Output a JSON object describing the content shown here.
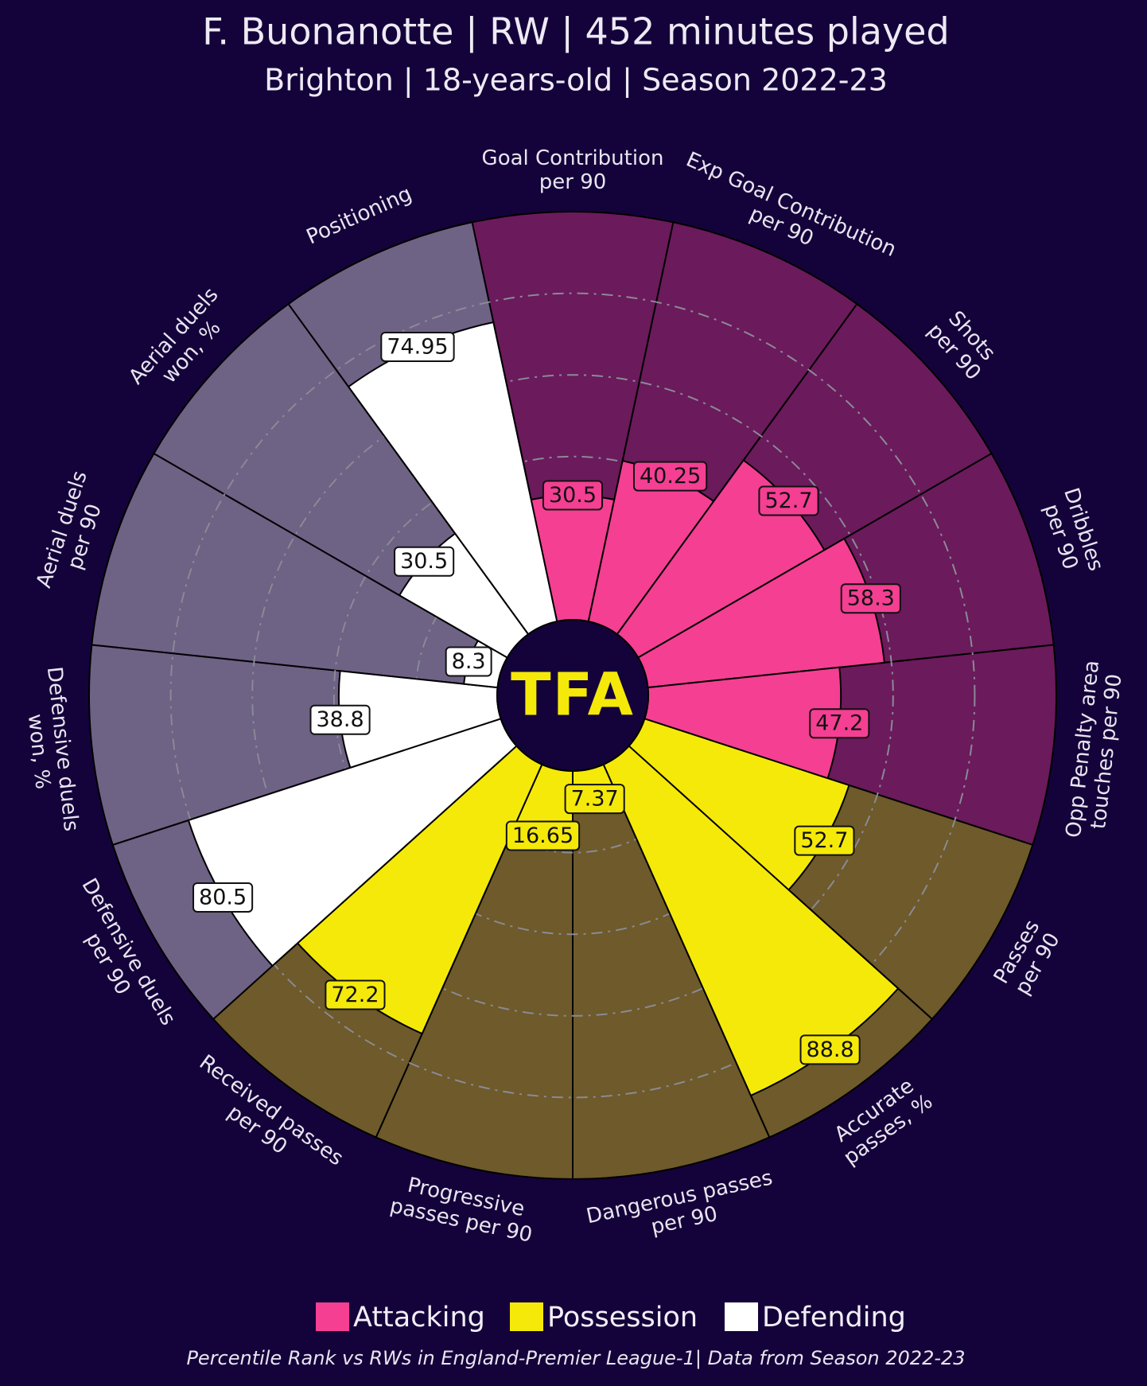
{
  "chart_data": {
    "type": "pizza",
    "title": "F. Buonanotte | RW | 452 minutes played",
    "subtitle": "Brighton | 18-years-old | Season 2022-23",
    "logo": "TFA",
    "footnote": "Percentile Rank vs RWs in England-Premier League-1| Data from Season 2022-23",
    "categories": [
      "Goal Contribution\nper 90",
      "Exp Goal Contribution\nper 90",
      "Shots\nper 90",
      "Dribbles\nper 90",
      "Opp Penalty area\ntouches per 90",
      "Passes\nper 90",
      "Accurate\npasses, %",
      "Dangerous passes\nper 90",
      "Progressive\npasses per 90",
      "Received passes\nper 90",
      "Defensive duels\nper 90",
      "Defensive duels\nwon, %",
      "Aerial duels\nper 90",
      "Aerial duels\nwon, %",
      "Positioning"
    ],
    "series": [
      {
        "name": "Attacking",
        "color": "#f43f93",
        "slice_color": "#6b1a5c",
        "values": [
          30.5,
          40.25,
          52.7,
          58.3,
          47.2,
          null,
          null,
          null,
          null,
          null,
          null,
          null,
          null,
          null,
          null
        ]
      },
      {
        "name": "Possession",
        "color": "#f5e90a",
        "slice_color": "#6e5a2a",
        "values": [
          null,
          null,
          null,
          null,
          null,
          52.7,
          88.8,
          7.37,
          16.65,
          72.2,
          null,
          null,
          null,
          null,
          null
        ]
      },
      {
        "name": "Defending",
        "color": "#ffffff",
        "slice_color": "#6e6285",
        "values": [
          null,
          null,
          null,
          null,
          null,
          null,
          null,
          null,
          null,
          null,
          80.5,
          38.8,
          8.3,
          30.5,
          74.95
        ]
      }
    ],
    "ylim": [
      0,
      100
    ],
    "yticks": [
      20,
      40,
      60,
      80
    ],
    "grid": true
  }
}
